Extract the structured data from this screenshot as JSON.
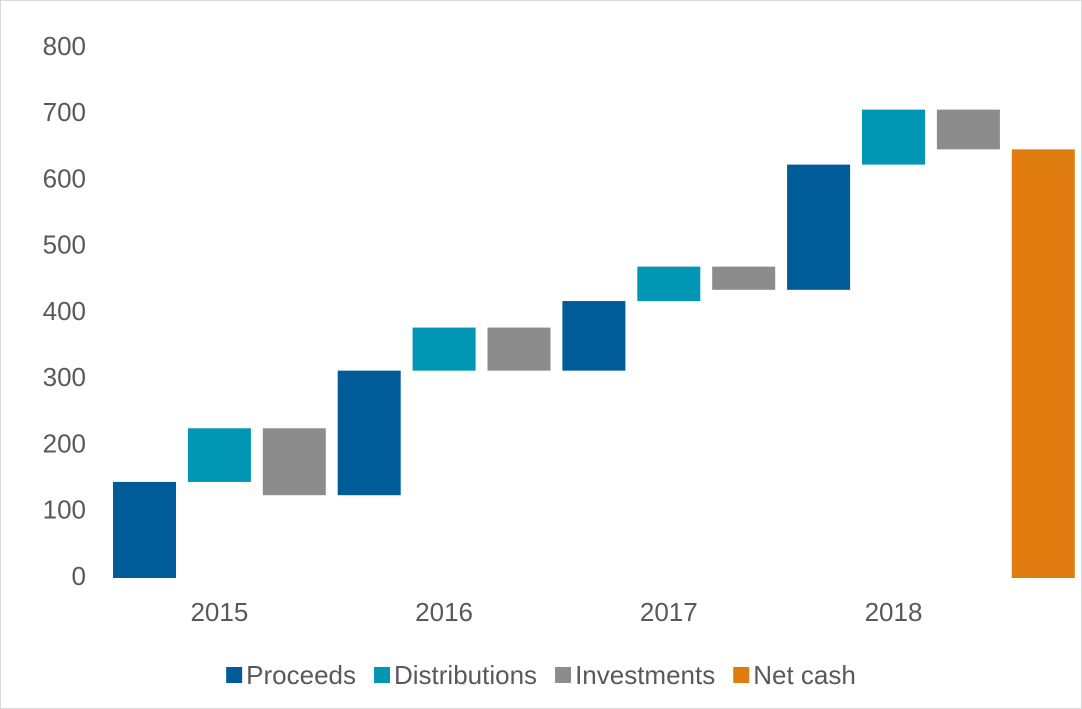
{
  "chart_data": {
    "type": "waterfall",
    "categories": [
      "2015",
      "2016",
      "2017",
      "2018",
      null
    ],
    "series": [
      {
        "name": "Proceeds",
        "color": "#005b99",
        "values": [
          145,
          188,
          105,
          189,
          null
        ]
      },
      {
        "name": "Distributions",
        "color": "#0096b4",
        "values": [
          81,
          65,
          52,
          83,
          null
        ]
      },
      {
        "name": "Investments",
        "color": "#8c8c8c",
        "values": [
          -101,
          -65,
          -35,
          -60,
          null
        ]
      },
      {
        "name": "Net cash",
        "color": "#e07b10",
        "values": [
          null,
          null,
          null,
          null,
          647
        ],
        "total": true
      }
    ],
    "ylim": [
      0,
      800
    ],
    "yticks": [
      0,
      100,
      200,
      300,
      400,
      500,
      600,
      700,
      800
    ],
    "grid": false,
    "legend": "bottom"
  }
}
